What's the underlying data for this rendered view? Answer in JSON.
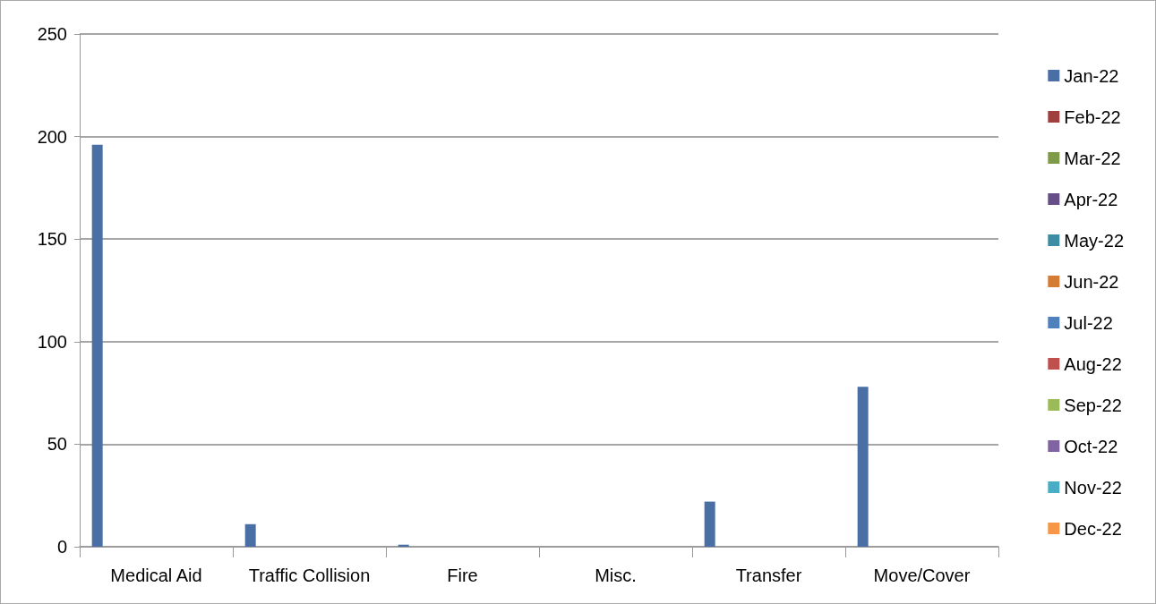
{
  "chart_data": {
    "type": "bar",
    "categories": [
      "Medical Aid",
      "Traffic Collision",
      "Fire",
      "Misc.",
      "Transfer",
      "Move/Cover"
    ],
    "series": [
      {
        "name": "Jan-22",
        "color": "#4a6fa5",
        "values": [
          196,
          11,
          1,
          0,
          22,
          78
        ]
      },
      {
        "name": "Feb-22",
        "color": "#a0403e",
        "values": [
          null,
          null,
          null,
          null,
          null,
          null
        ]
      },
      {
        "name": "Mar-22",
        "color": "#7f9a48",
        "values": [
          null,
          null,
          null,
          null,
          null,
          null
        ]
      },
      {
        "name": "Apr-22",
        "color": "#664f87",
        "values": [
          null,
          null,
          null,
          null,
          null,
          null
        ]
      },
      {
        "name": "May-22",
        "color": "#3c8da3",
        "values": [
          null,
          null,
          null,
          null,
          null,
          null
        ]
      },
      {
        "name": "Jun-22",
        "color": "#d57c34",
        "values": [
          null,
          null,
          null,
          null,
          null,
          null
        ]
      },
      {
        "name": "Jul-22",
        "color": "#4f81bd",
        "values": [
          null,
          null,
          null,
          null,
          null,
          null
        ]
      },
      {
        "name": "Aug-22",
        "color": "#c0504d",
        "values": [
          null,
          null,
          null,
          null,
          null,
          null
        ]
      },
      {
        "name": "Sep-22",
        "color": "#9bbb59",
        "values": [
          null,
          null,
          null,
          null,
          null,
          null
        ]
      },
      {
        "name": "Oct-22",
        "color": "#8064a2",
        "values": [
          null,
          null,
          null,
          null,
          null,
          null
        ]
      },
      {
        "name": "Nov-22",
        "color": "#4bacc6",
        "values": [
          null,
          null,
          null,
          null,
          null,
          null
        ]
      },
      {
        "name": "Dec-22",
        "color": "#f79646",
        "values": [
          null,
          null,
          null,
          null,
          null,
          null
        ]
      }
    ],
    "ylim": [
      0,
      250
    ],
    "yticks": [
      0,
      50,
      100,
      150,
      200,
      250
    ],
    "grid": "y",
    "legend": "right"
  }
}
